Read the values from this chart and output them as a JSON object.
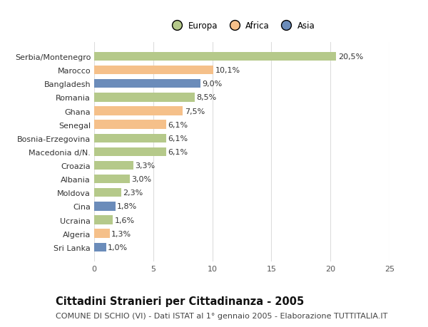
{
  "categories": [
    "Sri Lanka",
    "Algeria",
    "Ucraina",
    "Cina",
    "Moldova",
    "Albania",
    "Croazia",
    "Macedonia d/N.",
    "Bosnia-Erzegovina",
    "Senegal",
    "Ghana",
    "Romania",
    "Bangladesh",
    "Marocco",
    "Serbia/Montenegro"
  ],
  "values": [
    1.0,
    1.3,
    1.6,
    1.8,
    2.3,
    3.0,
    3.3,
    6.1,
    6.1,
    6.1,
    7.5,
    8.5,
    9.0,
    10.1,
    20.5
  ],
  "labels": [
    "1,0%",
    "1,3%",
    "1,6%",
    "1,8%",
    "2,3%",
    "3,0%",
    "3,3%",
    "6,1%",
    "6,1%",
    "6,1%",
    "7,5%",
    "8,5%",
    "9,0%",
    "10,1%",
    "20,5%"
  ],
  "continents": [
    "Asia",
    "Africa",
    "Europa",
    "Asia",
    "Europa",
    "Europa",
    "Europa",
    "Europa",
    "Europa",
    "Africa",
    "Africa",
    "Europa",
    "Asia",
    "Africa",
    "Europa"
  ],
  "colors": {
    "Europa": "#b5c98a",
    "Africa": "#f5c08a",
    "Asia": "#6b8cba"
  },
  "xlim": [
    0,
    25
  ],
  "xticks": [
    0,
    5,
    10,
    15,
    20,
    25
  ],
  "title": "Cittadini Stranieri per Cittadinanza - 2005",
  "subtitle": "COMUNE DI SCHIO (VI) - Dati ISTAT al 1° gennaio 2005 - Elaborazione TUTTITALIA.IT",
  "background_color": "#ffffff",
  "plot_bg_color": "#ffffff",
  "grid_color": "#dddddd",
  "label_fontsize": 8,
  "ytick_fontsize": 8,
  "xtick_fontsize": 8,
  "title_fontsize": 10.5,
  "subtitle_fontsize": 8
}
